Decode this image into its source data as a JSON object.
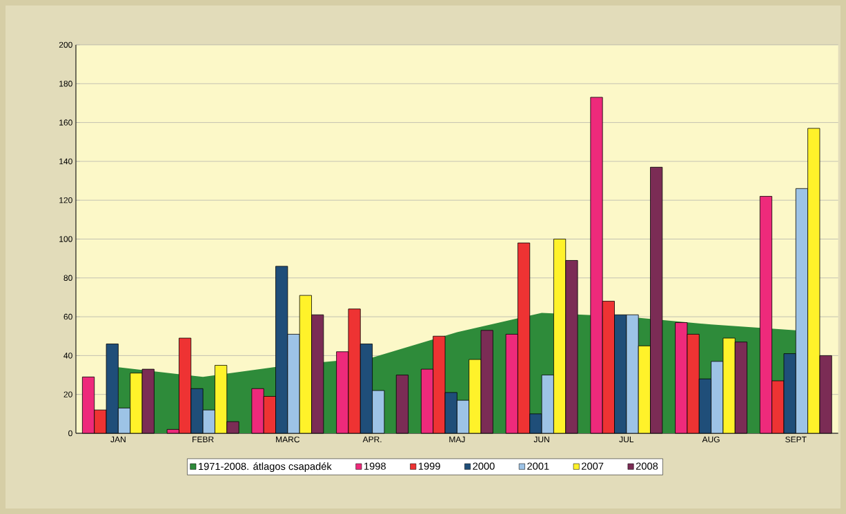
{
  "chart_data": {
    "type": "bar",
    "categories": [
      "JAN",
      "FEBR",
      "MARC",
      "APR.",
      "MAJ",
      "JUN",
      "JUL",
      "AUG",
      "SEPT"
    ],
    "series": [
      {
        "name": "1971-2008. átlagos csapadék",
        "type": "area",
        "color": "#2e8b3a",
        "values": [
          34,
          29,
          35,
          39,
          52,
          62,
          60,
          56,
          53
        ]
      },
      {
        "name": "1998",
        "color": "#ee2a7b",
        "values": [
          29,
          2,
          23,
          42,
          33,
          51,
          173,
          57,
          122
        ]
      },
      {
        "name": "1999",
        "color": "#ee3333",
        "values": [
          12,
          49,
          19,
          64,
          50,
          98,
          68,
          51,
          27
        ]
      },
      {
        "name": "2000",
        "color": "#1f4e79",
        "values": [
          46,
          23,
          86,
          46,
          21,
          10,
          61,
          28,
          41
        ]
      },
      {
        "name": "2001",
        "color": "#9dc3e6",
        "values": [
          13,
          12,
          51,
          22,
          17,
          30,
          61,
          37,
          126
        ]
      },
      {
        "name": "2007",
        "color": "#fff22a",
        "values": [
          31,
          35,
          71,
          null,
          38,
          100,
          45,
          49,
          157
        ]
      },
      {
        "name": "2008",
        "color": "#7b2c55",
        "values": [
          33,
          6,
          61,
          30,
          53,
          89,
          137,
          47,
          40
        ]
      }
    ],
    "ylim": [
      0,
      200
    ],
    "yticks": [
      0,
      20,
      40,
      60,
      80,
      100,
      120,
      140,
      160,
      180,
      200
    ],
    "grid": "y",
    "legend": "bottom"
  }
}
